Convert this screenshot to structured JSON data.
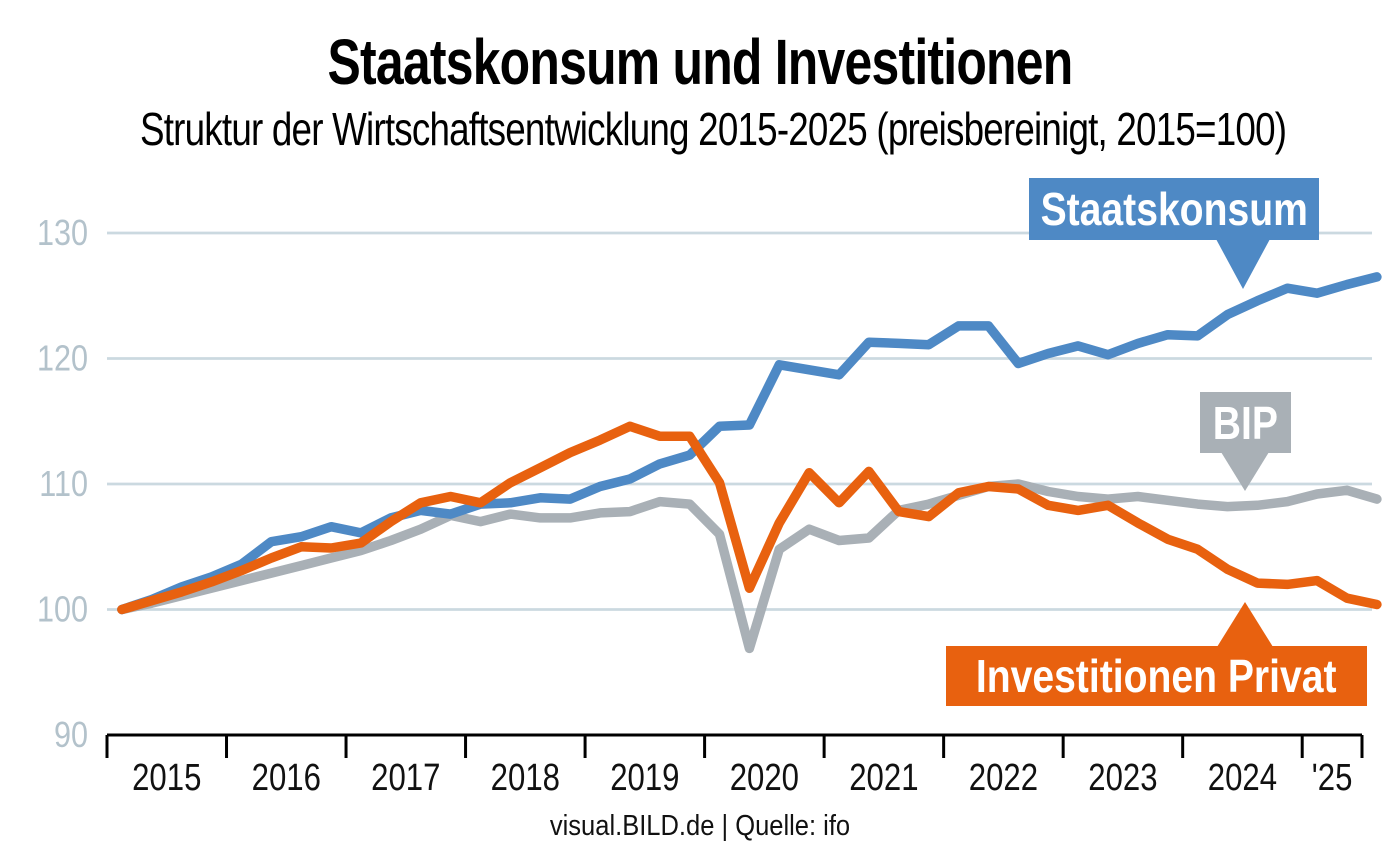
{
  "title": "Staatskonsum und Investitionen",
  "subtitle": "Struktur der Wirtschaftsentwicklung 2015-2025 (preisbereinigt, 2015=100)",
  "footer": "visual.BILD.de | Quelle: ifo",
  "colors": {
    "staatskonsum": "#4e89c5",
    "bip": "#a9b0b6",
    "investitionen": "#e8610f",
    "grid": "#cbd9e0",
    "axis": "#000000",
    "y_label": "#b3c2cb",
    "x_label": "#111111"
  },
  "callouts": {
    "staatskonsum": {
      "label": "Staatskonsum"
    },
    "bip": {
      "label": "BIP"
    },
    "investitionen": {
      "label": "Investitionen Privat"
    }
  },
  "chart_data": {
    "type": "line",
    "title": "Staatskonsum und Investitionen",
    "subtitle": "Struktur der Wirtschaftsentwicklung 2015-2025 (preisbereinigt, 2015=100)",
    "x_unit": "quarter",
    "x_start": "2015 Q1",
    "x_end": "2025 Q3",
    "x_tick_labels": [
      "2015",
      "2016",
      "2017",
      "2018",
      "2019",
      "2020",
      "2021",
      "2022",
      "2023",
      "2024",
      "'25"
    ],
    "y_ticks": [
      90,
      100,
      110,
      120,
      130
    ],
    "ylim": [
      90,
      130
    ],
    "grid": true,
    "legend_position": "callouts-on-chart",
    "series": [
      {
        "name": "BIP",
        "color_key": "bip",
        "values": [
          100.0,
          100.5,
          101.1,
          101.7,
          102.3,
          102.9,
          103.5,
          104.1,
          104.7,
          105.5,
          106.4,
          107.5,
          107.0,
          107.6,
          107.3,
          107.3,
          107.7,
          107.8,
          108.6,
          108.4,
          106.0,
          96.9,
          104.8,
          106.4,
          105.5,
          105.7,
          107.9,
          108.4,
          109.1,
          109.8,
          110.0,
          109.4,
          109.0,
          108.8,
          109.0,
          108.7,
          108.4,
          108.2,
          108.3,
          108.6,
          109.2,
          109.5,
          108.8
        ]
      },
      {
        "name": "Staatskonsum",
        "color_key": "staatskonsum",
        "values": [
          100.0,
          100.8,
          101.8,
          102.6,
          103.6,
          105.4,
          105.8,
          106.6,
          106.1,
          107.3,
          107.9,
          107.6,
          108.4,
          108.5,
          108.9,
          108.8,
          109.8,
          110.4,
          111.6,
          112.3,
          114.6,
          114.7,
          119.5,
          119.1,
          118.7,
          121.3,
          121.2,
          121.1,
          122.6,
          122.6,
          119.6,
          120.4,
          121.0,
          120.3,
          121.2,
          121.9,
          121.8,
          123.5,
          124.6,
          125.6,
          125.2,
          125.9,
          126.5
        ]
      },
      {
        "name": "Investitionen Privat",
        "color_key": "investitionen",
        "values": [
          100.0,
          100.7,
          101.4,
          102.2,
          103.1,
          104.1,
          105.0,
          104.9,
          105.3,
          107.0,
          108.5,
          109.0,
          108.5,
          110.1,
          111.3,
          112.5,
          113.5,
          114.6,
          113.8,
          113.8,
          110.1,
          101.7,
          106.9,
          110.9,
          108.5,
          111.0,
          107.8,
          107.4,
          109.3,
          109.8,
          109.6,
          108.3,
          107.9,
          108.3,
          106.9,
          105.6,
          104.8,
          103.2,
          102.1,
          102.0,
          102.3,
          100.9,
          100.4
        ]
      }
    ]
  }
}
